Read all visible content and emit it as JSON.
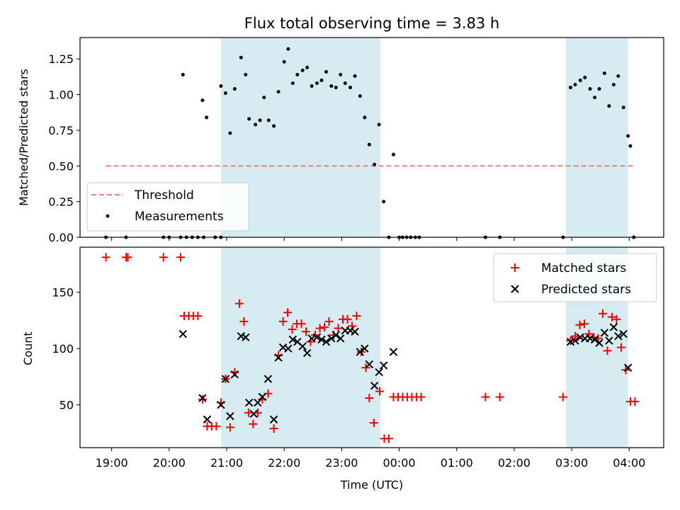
{
  "chart_data": {
    "type": "scatter",
    "title": "Flux total observing time = 3.83 h",
    "x_axis": {
      "label": "Time (UTC)",
      "range_hours_since_1900": [
        18.45,
        28.6
      ],
      "ticks": [
        {
          "v": 19,
          "label": "19:00"
        },
        {
          "v": 20,
          "label": "20:00"
        },
        {
          "v": 21,
          "label": "21:00"
        },
        {
          "v": 22,
          "label": "22:00"
        },
        {
          "v": 23,
          "label": "23:00"
        },
        {
          "v": 24,
          "label": "00:00"
        },
        {
          "v": 25,
          "label": "01:00"
        },
        {
          "v": 26,
          "label": "02:00"
        },
        {
          "v": 27,
          "label": "03:00"
        },
        {
          "v": 28,
          "label": "04:00"
        }
      ]
    },
    "shaded_intervals": [
      [
        20.9,
        23.67
      ],
      [
        26.9,
        27.98
      ]
    ],
    "panels": [
      {
        "ylabel": "Matched/Predicted stars",
        "ylim": [
          0,
          1.4
        ],
        "yticks": [
          {
            "v": 0,
            "label": "0.00"
          },
          {
            "v": 0.25,
            "label": "0.25"
          },
          {
            "v": 0.5,
            "label": "0.50"
          },
          {
            "v": 0.75,
            "label": "0.75"
          },
          {
            "v": 1.0,
            "label": "1.00"
          },
          {
            "v": 1.25,
            "label": "1.25"
          }
        ],
        "threshold": {
          "name": "Threshold",
          "value": 0.5,
          "x_range": [
            18.9,
            28.1
          ],
          "color": "#f08080"
        },
        "legend": {
          "position": "lower-left",
          "entries": [
            "Threshold",
            "Measurements"
          ]
        },
        "series": [
          {
            "name": "Measurements",
            "marker": "dot",
            "color": "#000000",
            "points": [
              [
                18.9,
                0
              ],
              [
                19.25,
                0
              ],
              [
                19.9,
                0
              ],
              [
                20.0,
                0
              ],
              [
                20.2,
                0
              ],
              [
                20.3,
                0
              ],
              [
                20.4,
                0
              ],
              [
                20.5,
                0
              ],
              [
                20.6,
                0
              ],
              [
                20.8,
                0
              ],
              [
                20.9,
                0
              ],
              [
                20.24,
                1.14
              ],
              [
                20.58,
                0.96
              ],
              [
                20.65,
                0.84
              ],
              [
                20.9,
                1.06
              ],
              [
                20.98,
                1.01
              ],
              [
                21.06,
                0.73
              ],
              [
                21.14,
                1.04
              ],
              [
                21.25,
                1.26
              ],
              [
                21.33,
                1.14
              ],
              [
                21.39,
                0.83
              ],
              [
                21.5,
                0.79
              ],
              [
                21.58,
                0.82
              ],
              [
                21.65,
                0.98
              ],
              [
                21.73,
                0.82
              ],
              [
                21.82,
                0.78
              ],
              [
                21.9,
                1.02
              ],
              [
                22.0,
                1.23
              ],
              [
                22.07,
                1.32
              ],
              [
                22.15,
                1.08
              ],
              [
                22.23,
                1.14
              ],
              [
                22.32,
                1.17
              ],
              [
                22.4,
                1.19
              ],
              [
                22.48,
                1.06
              ],
              [
                22.57,
                1.08
              ],
              [
                22.65,
                1.1
              ],
              [
                22.73,
                1.16
              ],
              [
                22.82,
                1.06
              ],
              [
                22.9,
                1.05
              ],
              [
                22.98,
                1.14
              ],
              [
                23.06,
                1.08
              ],
              [
                23.15,
                1.05
              ],
              [
                23.23,
                1.13
              ],
              [
                23.32,
                0.99
              ],
              [
                23.4,
                0.84
              ],
              [
                23.48,
                0.65
              ],
              [
                23.57,
                0.51
              ],
              [
                23.65,
                0.79
              ],
              [
                23.73,
                0.25
              ],
              [
                23.82,
                0
              ],
              [
                23.9,
                0.58
              ],
              [
                24.0,
                0
              ],
              [
                24.06,
                0
              ],
              [
                24.13,
                0
              ],
              [
                24.2,
                0
              ],
              [
                24.28,
                0
              ],
              [
                24.35,
                0
              ],
              [
                25.5,
                0
              ],
              [
                25.75,
                0
              ],
              [
                26.85,
                0
              ],
              [
                26.98,
                1.05
              ],
              [
                27.06,
                1.07
              ],
              [
                27.15,
                1.1
              ],
              [
                27.23,
                1.12
              ],
              [
                27.32,
                1.04
              ],
              [
                27.4,
                0.98
              ],
              [
                27.48,
                1.04
              ],
              [
                27.57,
                1.15
              ],
              [
                27.65,
                0.92
              ],
              [
                27.73,
                1.07
              ],
              [
                27.81,
                1.13
              ],
              [
                27.9,
                0.91
              ],
              [
                27.98,
                0.71
              ],
              [
                28.02,
                0.64
              ],
              [
                28.08,
                0
              ]
            ]
          }
        ]
      },
      {
        "ylabel": "Count",
        "ylim": [
          12,
          190
        ],
        "yticks": [
          {
            "v": 50,
            "label": "50"
          },
          {
            "v": 100,
            "label": "100"
          },
          {
            "v": 150,
            "label": "150"
          }
        ],
        "legend": {
          "position": "top-right",
          "entries": [
            "Matched stars",
            "Predicted stars"
          ]
        },
        "series": [
          {
            "name": "Matched stars",
            "marker": "plus",
            "color": "#ff0000",
            "points": [
              [
                18.9,
                181
              ],
              [
                19.25,
                181
              ],
              [
                19.28,
                181
              ],
              [
                19.9,
                181
              ],
              [
                20.2,
                181
              ],
              [
                20.26,
                129
              ],
              [
                20.34,
                129
              ],
              [
                20.42,
                129
              ],
              [
                20.5,
                129
              ],
              [
                20.58,
                55
              ],
              [
                20.66,
                31
              ],
              [
                20.74,
                31
              ],
              [
                20.82,
                31
              ],
              [
                20.9,
                52
              ],
              [
                20.98,
                73
              ],
              [
                21.06,
                30
              ],
              [
                21.14,
                79
              ],
              [
                21.22,
                140
              ],
              [
                21.3,
                124
              ],
              [
                21.38,
                43
              ],
              [
                21.46,
                33
              ],
              [
                21.54,
                43
              ],
              [
                21.62,
                55
              ],
              [
                21.72,
                60
              ],
              [
                21.82,
                29
              ],
              [
                21.9,
                94
              ],
              [
                21.98,
                124
              ],
              [
                22.06,
                132
              ],
              [
                22.14,
                117
              ],
              [
                22.22,
                122
              ],
              [
                22.3,
                122
              ],
              [
                22.38,
                115
              ],
              [
                22.46,
                106
              ],
              [
                22.54,
                112
              ],
              [
                22.62,
                118
              ],
              [
                22.7,
                119
              ],
              [
                22.78,
                124
              ],
              [
                22.86,
                112
              ],
              [
                22.94,
                118
              ],
              [
                23.02,
                126
              ],
              [
                23.1,
                126
              ],
              [
                23.18,
                120
              ],
              [
                23.26,
                129
              ],
              [
                23.34,
                97
              ],
              [
                23.42,
                83
              ],
              [
                23.48,
                56
              ],
              [
                23.56,
                34
              ],
              [
                23.66,
                62
              ],
              [
                23.74,
                20
              ],
              [
                23.82,
                20
              ],
              [
                23.9,
                57
              ],
              [
                23.98,
                57
              ],
              [
                24.06,
                57
              ],
              [
                24.14,
                57
              ],
              [
                24.22,
                57
              ],
              [
                24.3,
                57
              ],
              [
                24.38,
                57
              ],
              [
                25.5,
                57
              ],
              [
                25.75,
                57
              ],
              [
                26.85,
                57
              ],
              [
                26.98,
                107
              ],
              [
                27.06,
                111
              ],
              [
                27.14,
                121
              ],
              [
                27.22,
                122
              ],
              [
                27.3,
                113
              ],
              [
                27.38,
                110
              ],
              [
                27.46,
                109
              ],
              [
                27.54,
                131
              ],
              [
                27.62,
                98
              ],
              [
                27.7,
                128
              ],
              [
                27.78,
                126
              ],
              [
                27.86,
                101
              ],
              [
                27.94,
                81
              ],
              [
                28.02,
                53
              ],
              [
                28.1,
                53
              ]
            ]
          },
          {
            "name": "Predicted stars",
            "marker": "x",
            "color": "#000000",
            "points": [
              [
                20.24,
                113
              ],
              [
                20.58,
                56
              ],
              [
                20.66,
                37
              ],
              [
                20.9,
                50
              ],
              [
                20.98,
                73
              ],
              [
                21.06,
                40
              ],
              [
                21.14,
                77
              ],
              [
                21.25,
                111
              ],
              [
                21.33,
                110
              ],
              [
                21.39,
                52
              ],
              [
                21.47,
                42
              ],
              [
                21.54,
                52
              ],
              [
                21.62,
                57
              ],
              [
                21.72,
                73
              ],
              [
                21.82,
                37
              ],
              [
                21.9,
                92
              ],
              [
                21.98,
                101
              ],
              [
                22.07,
                100
              ],
              [
                22.15,
                108
              ],
              [
                22.23,
                106
              ],
              [
                22.32,
                102
              ],
              [
                22.4,
                96
              ],
              [
                22.48,
                109
              ],
              [
                22.57,
                110
              ],
              [
                22.65,
                108
              ],
              [
                22.73,
                106
              ],
              [
                22.82,
                109
              ],
              [
                22.9,
                112
              ],
              [
                22.98,
                109
              ],
              [
                23.06,
                116
              ],
              [
                23.15,
                116
              ],
              [
                23.23,
                115
              ],
              [
                23.32,
                97
              ],
              [
                23.4,
                100
              ],
              [
                23.48,
                86
              ],
              [
                23.57,
                67
              ],
              [
                23.65,
                79
              ],
              [
                23.73,
                85
              ],
              [
                23.9,
                97
              ],
              [
                26.98,
                106
              ],
              [
                27.06,
                107
              ],
              [
                27.15,
                110
              ],
              [
                27.23,
                109
              ],
              [
                27.32,
                109
              ],
              [
                27.4,
                108
              ],
              [
                27.48,
                105
              ],
              [
                27.57,
                114
              ],
              [
                27.65,
                107
              ],
              [
                27.73,
                119
              ],
              [
                27.81,
                111
              ],
              [
                27.9,
                113
              ],
              [
                27.98,
                83
              ]
            ]
          }
        ]
      }
    ]
  }
}
